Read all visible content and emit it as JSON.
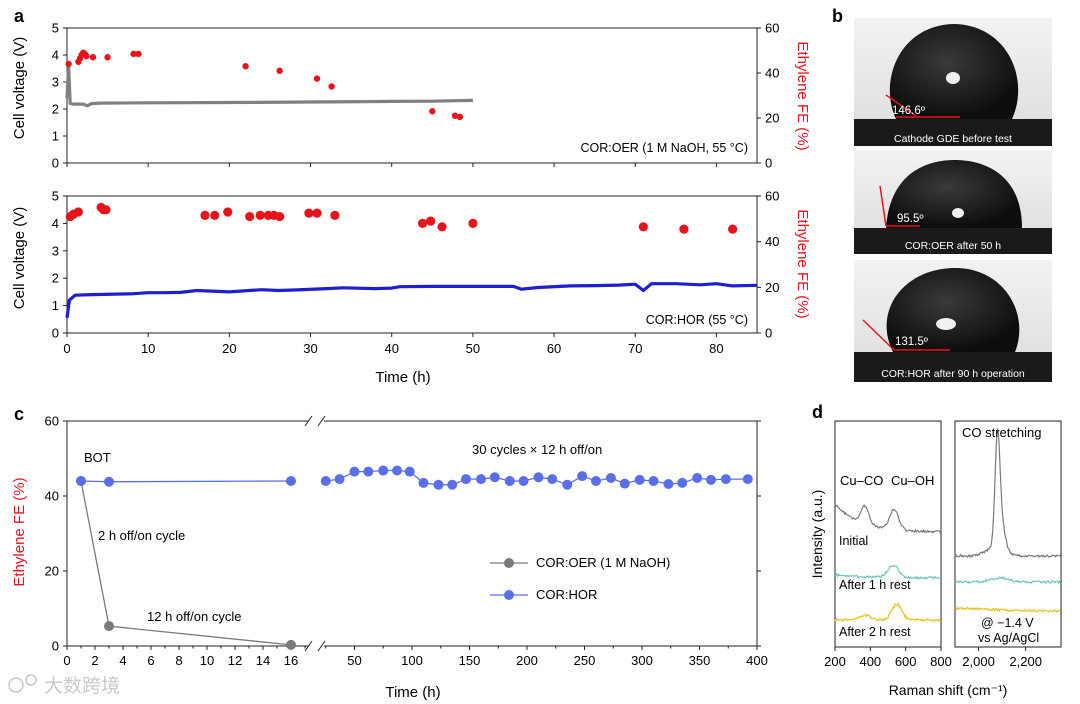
{
  "panels": {
    "a": "a",
    "b": "b",
    "c": "c",
    "d": "d"
  },
  "colors": {
    "gray_series": "#808080",
    "red_points": "#e8141c",
    "blue_series": "#1f1fd0",
    "cor_hor_c": "#5a6ee8",
    "cor_oer_c": "#7a7a7a",
    "teal": "#6cc3c0",
    "yellow": "#e5c320",
    "angle_line": "#e8141c"
  },
  "watermark": "大数跨境",
  "chart_data": [
    {
      "id": "a-top",
      "type": "line",
      "ylabel": "Cell voltage (V)",
      "y2label": "Ethylene FE (%)",
      "ylim": [
        0,
        5
      ],
      "y2lim": [
        0,
        60
      ],
      "xlim": [
        0,
        85
      ],
      "yticks": [
        "0",
        "1",
        "2",
        "3",
        "4",
        "5"
      ],
      "y2ticks": [
        "0",
        "20",
        "40",
        "60"
      ],
      "annotation": "COR:OER (1 M NaOH, 55 °C)",
      "voltage": {
        "x": [
          0,
          0.2,
          0.4,
          0.8,
          2,
          2.5,
          3,
          4,
          10,
          20,
          30,
          40,
          45,
          50
        ],
        "y": [
          2.4,
          3.6,
          2.2,
          2.18,
          2.18,
          2.12,
          2.2,
          2.22,
          2.23,
          2.24,
          2.26,
          2.28,
          2.29,
          2.32
        ]
      },
      "fe": {
        "x": [
          0.2,
          1.4,
          1.6,
          1.8,
          2,
          2.2,
          2.4,
          3.2,
          5,
          8.2,
          8.8,
          22,
          26.2,
          30.8,
          32.6,
          45,
          47.8,
          48.4
        ],
        "y": [
          44,
          45,
          46.5,
          48,
          49,
          48.5,
          47.5,
          47,
          47,
          48.5,
          48.5,
          43,
          41,
          37.5,
          34,
          23,
          21,
          20.5
        ]
      }
    },
    {
      "id": "a-bottom",
      "type": "line",
      "xlabel": "Time (h)",
      "ylabel": "Cell voltage (V)",
      "y2label": "Ethylene FE (%)",
      "ylim": [
        0,
        5
      ],
      "y2lim": [
        0,
        60
      ],
      "xlim": [
        0,
        85
      ],
      "xticks": [
        "0",
        "10",
        "20",
        "30",
        "40",
        "50",
        "60",
        "70",
        "80"
      ],
      "yticks": [
        "0",
        "1",
        "2",
        "3",
        "4",
        "5"
      ],
      "y2ticks": [
        "0",
        "20",
        "40",
        "60"
      ],
      "annotation": "COR:HOR (55 °C)",
      "voltage": {
        "x": [
          0,
          0.3,
          1,
          3,
          8,
          10,
          12,
          14,
          16,
          20,
          24,
          26,
          28,
          32,
          34,
          38,
          40,
          41,
          45,
          55,
          56,
          58,
          62,
          65,
          68,
          70,
          71,
          72,
          75,
          78,
          80,
          82,
          85
        ],
        "y": [
          0.55,
          1.2,
          1.38,
          1.4,
          1.43,
          1.47,
          1.47,
          1.48,
          1.55,
          1.5,
          1.58,
          1.55,
          1.57,
          1.62,
          1.65,
          1.62,
          1.64,
          1.69,
          1.7,
          1.7,
          1.6,
          1.66,
          1.72,
          1.73,
          1.75,
          1.78,
          1.55,
          1.8,
          1.8,
          1.76,
          1.8,
          1.72,
          1.74
        ]
      },
      "fe": {
        "x": [
          0.4,
          0.8,
          1.4,
          4.2,
          4.5,
          4.8,
          17,
          18.2,
          19.8,
          22.5,
          23.8,
          24.8,
          25.5,
          26.2,
          29.8,
          30.8,
          33,
          43.8,
          44.8,
          46.2,
          50,
          71,
          76,
          82
        ],
        "y": [
          51,
          52,
          53,
          55,
          54,
          54,
          51.5,
          51.5,
          53,
          51,
          51.5,
          51.5,
          51.5,
          51,
          52.5,
          52.5,
          51.5,
          48,
          49,
          46.5,
          48,
          46.5,
          45.5,
          45.5
        ]
      }
    },
    {
      "id": "c",
      "type": "line",
      "xlabel": "Time (h)",
      "ylabel": "Ethylene FE (%)",
      "ylim": [
        0,
        60
      ],
      "yticks": [
        "0",
        "20",
        "40",
        "60"
      ],
      "xticks_left": [
        "0",
        "2",
        "4",
        "6",
        "8",
        "10",
        "12",
        "14",
        "16"
      ],
      "xticks_right": [
        "50",
        "100",
        "150",
        "200",
        "250",
        "300",
        "350",
        "400"
      ],
      "annotations": {
        "bot": "BOT",
        "cycles": "30 cycles × 12 h off/on",
        "two_h": "2 h off/on cycle",
        "twelve_h": "12 h off/on cycle"
      },
      "legend": [
        {
          "name": "COR:OER (1 M NaOH)"
        },
        {
          "name": "COR:HOR"
        }
      ],
      "series": [
        {
          "name": "COR:OER (1 M NaOH)",
          "x": [
            1,
            3,
            16
          ],
          "y": [
            44,
            5.3,
            0.3
          ]
        },
        {
          "name": "COR:HOR",
          "x_left": [
            1,
            3,
            16
          ],
          "y_left": [
            44,
            43.8,
            44
          ],
          "x_right": [
            25,
            37,
            50,
            62,
            75,
            87,
            98,
            110,
            123,
            135,
            147,
            160,
            172,
            185,
            197,
            210,
            222,
            235,
            248,
            260,
            273,
            285,
            298,
            310,
            323,
            335,
            348,
            360,
            373,
            392
          ],
          "y_right": [
            44,
            44.5,
            46.5,
            46.5,
            46.8,
            46.8,
            46.5,
            43.5,
            43,
            43,
            44.5,
            44.5,
            45,
            44,
            44,
            45,
            44.5,
            43,
            45.3,
            44,
            44.8,
            43.3,
            44.3,
            44,
            43.2,
            43.5,
            44.8,
            44.3,
            44.5,
            44.5
          ]
        }
      ]
    },
    {
      "id": "d",
      "type": "line",
      "xlabel": "Raman shift (cm⁻¹)",
      "ylabel": "Intensity (a.u.)",
      "xticks_left": [
        "200",
        "400",
        "600",
        "800"
      ],
      "xticks_right": [
        "2,000",
        "2,200"
      ],
      "labels": {
        "cu_co": "Cu–CO",
        "cu_oh": "Cu–OH",
        "co_stretch": "CO stretching",
        "initial": "Initial",
        "after1": "After 1 h rest",
        "after2": "After 2 h rest",
        "potential": "@ −1.4 V",
        "ref": "vs Ag/AgCl"
      },
      "series": [
        {
          "name": "Initial"
        },
        {
          "name": "After 1 h rest"
        },
        {
          "name": "After 2 h rest"
        }
      ]
    }
  ],
  "contact_angles": [
    {
      "angle": "146.6º",
      "caption": "Cathode GDE before test"
    },
    {
      "angle": "95.5º",
      "caption": "COR:OER after 50 h"
    },
    {
      "angle": "131.5º",
      "caption": "COR:HOR after 90 h operation"
    }
  ]
}
